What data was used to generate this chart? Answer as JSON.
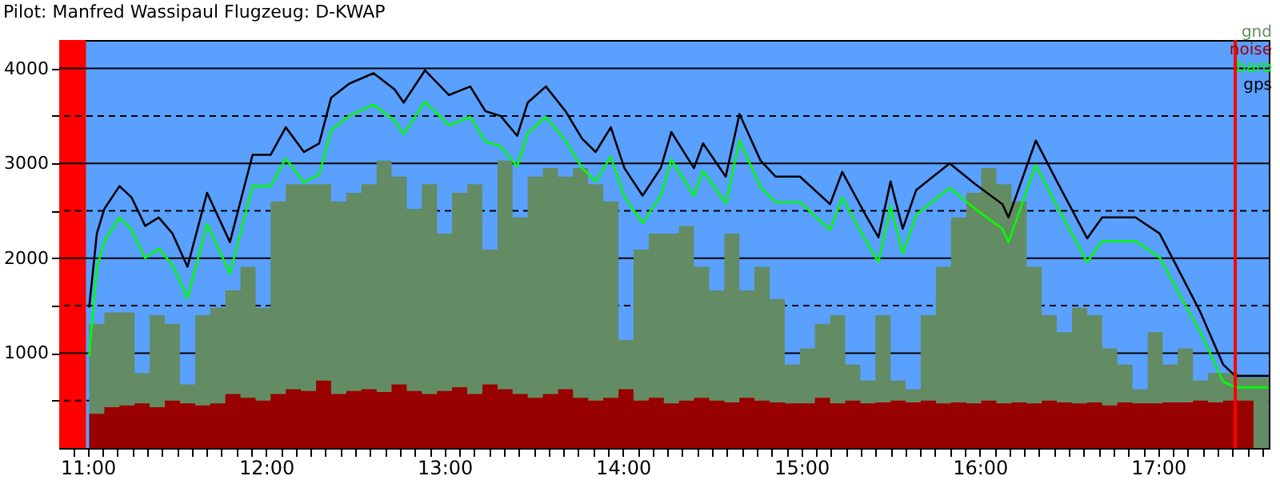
{
  "chart_data": {
    "type": "line",
    "title": "Pilot: Manfred Wassipaul Flugzeug: D-KWAP",
    "xlim": [
      10.84,
      17.62
    ],
    "ylim": [
      0,
      4300
    ],
    "xticks": [
      {
        "value": 10.917,
        "label": null
      },
      {
        "value": 11,
        "label": "11:00"
      },
      {
        "value": 11.083,
        "label": null
      },
      {
        "value": 11.167,
        "label": null
      },
      {
        "value": 11.25,
        "label": null
      },
      {
        "value": 11.333,
        "label": null
      },
      {
        "value": 11.417,
        "label": null
      },
      {
        "value": 11.5,
        "label": null
      },
      {
        "value": 11.583,
        "label": null
      },
      {
        "value": 11.667,
        "label": null
      },
      {
        "value": 11.75,
        "label": null
      },
      {
        "value": 11.833,
        "label": null
      },
      {
        "value": 11.917,
        "label": null
      },
      {
        "value": 12,
        "label": "12:00"
      },
      {
        "value": 12.083,
        "label": null
      },
      {
        "value": 12.167,
        "label": null
      },
      {
        "value": 12.25,
        "label": null
      },
      {
        "value": 12.333,
        "label": null
      },
      {
        "value": 12.417,
        "label": null
      },
      {
        "value": 12.5,
        "label": null
      },
      {
        "value": 12.583,
        "label": null
      },
      {
        "value": 12.667,
        "label": null
      },
      {
        "value": 12.75,
        "label": null
      },
      {
        "value": 12.833,
        "label": null
      },
      {
        "value": 12.917,
        "label": null
      },
      {
        "value": 13,
        "label": "13:00"
      },
      {
        "value": 13.083,
        "label": null
      },
      {
        "value": 13.167,
        "label": null
      },
      {
        "value": 13.25,
        "label": null
      },
      {
        "value": 13.333,
        "label": null
      },
      {
        "value": 13.417,
        "label": null
      },
      {
        "value": 13.5,
        "label": null
      },
      {
        "value": 13.583,
        "label": null
      },
      {
        "value": 13.667,
        "label": null
      },
      {
        "value": 13.75,
        "label": null
      },
      {
        "value": 13.833,
        "label": null
      },
      {
        "value": 13.917,
        "label": null
      },
      {
        "value": 14,
        "label": "14:00"
      },
      {
        "value": 14.083,
        "label": null
      },
      {
        "value": 14.167,
        "label": null
      },
      {
        "value": 14.25,
        "label": null
      },
      {
        "value": 14.333,
        "label": null
      },
      {
        "value": 14.417,
        "label": null
      },
      {
        "value": 14.5,
        "label": null
      },
      {
        "value": 14.583,
        "label": null
      },
      {
        "value": 14.667,
        "label": null
      },
      {
        "value": 14.75,
        "label": null
      },
      {
        "value": 14.833,
        "label": null
      },
      {
        "value": 14.917,
        "label": null
      },
      {
        "value": 15,
        "label": "15:00"
      },
      {
        "value": 15.083,
        "label": null
      },
      {
        "value": 15.167,
        "label": null
      },
      {
        "value": 15.25,
        "label": null
      },
      {
        "value": 15.333,
        "label": null
      },
      {
        "value": 15.417,
        "label": null
      },
      {
        "value": 15.5,
        "label": null
      },
      {
        "value": 15.583,
        "label": null
      },
      {
        "value": 15.667,
        "label": null
      },
      {
        "value": 15.75,
        "label": null
      },
      {
        "value": 15.833,
        "label": null
      },
      {
        "value": 15.917,
        "label": null
      },
      {
        "value": 16,
        "label": "16:00"
      },
      {
        "value": 16.083,
        "label": null
      },
      {
        "value": 16.167,
        "label": null
      },
      {
        "value": 16.25,
        "label": null
      },
      {
        "value": 16.333,
        "label": null
      },
      {
        "value": 16.417,
        "label": null
      },
      {
        "value": 16.5,
        "label": null
      },
      {
        "value": 16.583,
        "label": null
      },
      {
        "value": 16.667,
        "label": null
      },
      {
        "value": 16.75,
        "label": null
      },
      {
        "value": 16.833,
        "label": null
      },
      {
        "value": 16.917,
        "label": null
      },
      {
        "value": 17,
        "label": "17:00"
      },
      {
        "value": 17.083,
        "label": null
      },
      {
        "value": 17.167,
        "label": null
      },
      {
        "value": 17.25,
        "label": null
      },
      {
        "value": 17.333,
        "label": null
      },
      {
        "value": 17.417,
        "label": null
      },
      {
        "value": 17.5,
        "label": null
      },
      {
        "value": 17.583,
        "label": null
      }
    ],
    "yticks": [
      {
        "value": 500,
        "label": null
      },
      1000,
      {
        "value": 1500,
        "label": null
      },
      2000,
      {
        "value": 2500,
        "label": null
      },
      3000,
      {
        "value": 3500,
        "label": null
      },
      4000
    ],
    "grid": "y",
    "legend": "top right",
    "marker": "none",
    "line_style": "solid",
    "bands": [
      {
        "axis": "x",
        "from": 10.84,
        "to": 10.99,
        "color": "#ff0000"
      }
    ],
    "ref_lines": [
      {
        "axis": "x",
        "value": 17.432,
        "color": "#ff0000"
      }
    ],
    "series": [
      {
        "name": "gnd",
        "type": "area",
        "color": "#648c64",
        "x": [
          11.008,
          11.093,
          11.178,
          11.263,
          11.347,
          11.432,
          11.517,
          11.602,
          11.686,
          11.771,
          11.856,
          11.941,
          12.025,
          12.11,
          12.195,
          12.28,
          12.364,
          12.449,
          12.534,
          12.619,
          12.703,
          12.788,
          12.873,
          12.958,
          13.042,
          13.127,
          13.212,
          13.297,
          13.381,
          13.466,
          13.551,
          13.636,
          13.72,
          13.805,
          13.89,
          13.975,
          14.059,
          14.144,
          14.229,
          14.314,
          14.398,
          14.483,
          14.568,
          14.653,
          14.737,
          14.822,
          14.907,
          14.992,
          15.076,
          15.161,
          15.246,
          15.331,
          15.415,
          15.5,
          15.585,
          15.669,
          15.754,
          15.839,
          15.924,
          16.008,
          16.093,
          16.178,
          16.263,
          16.347,
          16.432,
          16.517,
          16.602,
          16.686,
          16.771,
          16.856,
          16.941,
          17.025,
          17.11,
          17.195,
          17.28,
          17.364,
          17.449,
          17.534,
          17.619
        ],
        "values": [
          1310,
          1430,
          1430,
          790,
          1400,
          1310,
          670,
          1400,
          1480,
          1660,
          1910,
          1480,
          2600,
          2780,
          2780,
          2780,
          2600,
          2690,
          2780,
          3030,
          2860,
          2520,
          2780,
          2260,
          2690,
          2780,
          2090,
          3030,
          2430,
          2860,
          2950,
          2860,
          2950,
          2780,
          2600,
          1140,
          2090,
          2260,
          2260,
          2340,
          1910,
          1660,
          2260,
          1660,
          1910,
          1570,
          880,
          1050,
          1310,
          1400,
          880,
          710,
          1400,
          710,
          620,
          1400,
          1910,
          2430,
          2690,
          2950,
          2780,
          2600,
          1910,
          1400,
          1220,
          1480,
          1400,
          1050,
          880,
          620,
          1220,
          880,
          1050,
          710,
          790,
          790,
          740,
          740,
          740
        ]
      },
      {
        "name": "noise",
        "type": "area",
        "color": "#990000",
        "x": [
          11.008,
          11.093,
          11.178,
          11.263,
          11.347,
          11.432,
          11.517,
          11.602,
          11.686,
          11.771,
          11.856,
          11.941,
          12.025,
          12.11,
          12.195,
          12.28,
          12.364,
          12.449,
          12.534,
          12.619,
          12.703,
          12.788,
          12.873,
          12.958,
          13.042,
          13.127,
          13.212,
          13.297,
          13.381,
          13.466,
          13.551,
          13.636,
          13.72,
          13.805,
          13.89,
          13.975,
          14.059,
          14.144,
          14.229,
          14.314,
          14.398,
          14.483,
          14.568,
          14.653,
          14.737,
          14.822,
          14.907,
          14.992,
          15.076,
          15.161,
          15.246,
          15.331,
          15.415,
          15.5,
          15.585,
          15.669,
          15.754,
          15.839,
          15.924,
          16.008,
          16.093,
          16.178,
          16.263,
          16.347,
          16.432,
          16.517,
          16.602,
          16.686,
          16.771,
          16.856,
          16.941,
          17.025,
          17.11,
          17.195,
          17.28,
          17.364,
          17.449,
          17.534,
          17.619
        ],
        "values": [
          360,
          430,
          450,
          470,
          430,
          500,
          470,
          450,
          470,
          570,
          530,
          500,
          570,
          620,
          600,
          710,
          570,
          600,
          620,
          590,
          670,
          600,
          570,
          600,
          640,
          570,
          670,
          620,
          570,
          530,
          570,
          620,
          530,
          500,
          530,
          620,
          500,
          530,
          470,
          500,
          530,
          500,
          480,
          530,
          500,
          480,
          470,
          470,
          530,
          470,
          500,
          470,
          480,
          500,
          480,
          500,
          470,
          480,
          470,
          500,
          470,
          480,
          470,
          500,
          480,
          470,
          480,
          450,
          480,
          470,
          470,
          480,
          480,
          500,
          480,
          500,
          500,
          0,
          0
        ]
      },
      {
        "name": "baro",
        "color": "#00ff00",
        "x": [
          11.008,
          11.051,
          11.093,
          11.178,
          11.246,
          11.322,
          11.398,
          11.475,
          11.559,
          11.669,
          11.797,
          11.881,
          11.924,
          12.025,
          12.11,
          12.212,
          12.297,
          12.364,
          12.466,
          12.602,
          12.72,
          12.771,
          12.89,
          13.025,
          13.144,
          13.229,
          13.314,
          13.407,
          13.466,
          13.568,
          13.678,
          13.771,
          13.847,
          13.932,
          14.008,
          14.11,
          14.212,
          14.271,
          14.398,
          14.449,
          14.576,
          14.653,
          14.771,
          14.856,
          14.992,
          15.161,
          15.229,
          15.356,
          15.432,
          15.5,
          15.568,
          15.644,
          15.831,
          15.975,
          16.127,
          16.161,
          16.314,
          16.432,
          16.602,
          16.686,
          16.873,
          17.008,
          17.127,
          17.237,
          17.364,
          17.432,
          17.619
        ],
        "values": [
          970,
          1900,
          2180,
          2430,
          2300,
          2000,
          2100,
          1930,
          1580,
          2360,
          1840,
          2450,
          2760,
          2760,
          3050,
          2800,
          2880,
          3350,
          3500,
          3620,
          3450,
          3310,
          3650,
          3400,
          3490,
          3230,
          3180,
          2970,
          3320,
          3490,
          3240,
          2950,
          2810,
          3070,
          2650,
          2370,
          2660,
          3040,
          2660,
          2920,
          2580,
          3240,
          2750,
          2590,
          2590,
          2300,
          2640,
          2200,
          1960,
          2550,
          2050,
          2460,
          2740,
          2520,
          2310,
          2170,
          2980,
          2550,
          1960,
          2180,
          2180,
          2010,
          1590,
          1220,
          700,
          640,
          640
        ]
      },
      {
        "name": "gps",
        "color": "#000000",
        "x": [
          11.008,
          11.051,
          11.093,
          11.178,
          11.246,
          11.322,
          11.398,
          11.475,
          11.559,
          11.669,
          11.797,
          11.881,
          11.924,
          12.025,
          12.11,
          12.212,
          12.297,
          12.364,
          12.466,
          12.602,
          12.72,
          12.771,
          12.89,
          13.025,
          13.144,
          13.229,
          13.314,
          13.407,
          13.466,
          13.568,
          13.678,
          13.771,
          13.847,
          13.932,
          14.008,
          14.11,
          14.212,
          14.271,
          14.398,
          14.449,
          14.576,
          14.653,
          14.771,
          14.856,
          14.992,
          15.161,
          15.229,
          15.356,
          15.432,
          15.5,
          15.568,
          15.644,
          15.831,
          15.975,
          16.127,
          16.161,
          16.314,
          16.432,
          16.602,
          16.686,
          16.873,
          17.008,
          17.127,
          17.237,
          17.364,
          17.432,
          17.619
        ],
        "values": [
          1480,
          2260,
          2520,
          2760,
          2640,
          2340,
          2430,
          2260,
          1910,
          2690,
          2170,
          2780,
          3090,
          3090,
          3380,
          3120,
          3210,
          3690,
          3840,
          3950,
          3780,
          3640,
          3980,
          3720,
          3810,
          3550,
          3500,
          3290,
          3640,
          3810,
          3550,
          3260,
          3120,
          3380,
          2950,
          2660,
          2950,
          3330,
          2950,
          3210,
          2860,
          3520,
          3030,
          2860,
          2860,
          2570,
          2910,
          2470,
          2220,
          2810,
          2310,
          2720,
          3000,
          2780,
          2570,
          2430,
          3240,
          2810,
          2210,
          2430,
          2430,
          2260,
          1830,
          1430,
          880,
          760,
          760
        ]
      }
    ]
  }
}
